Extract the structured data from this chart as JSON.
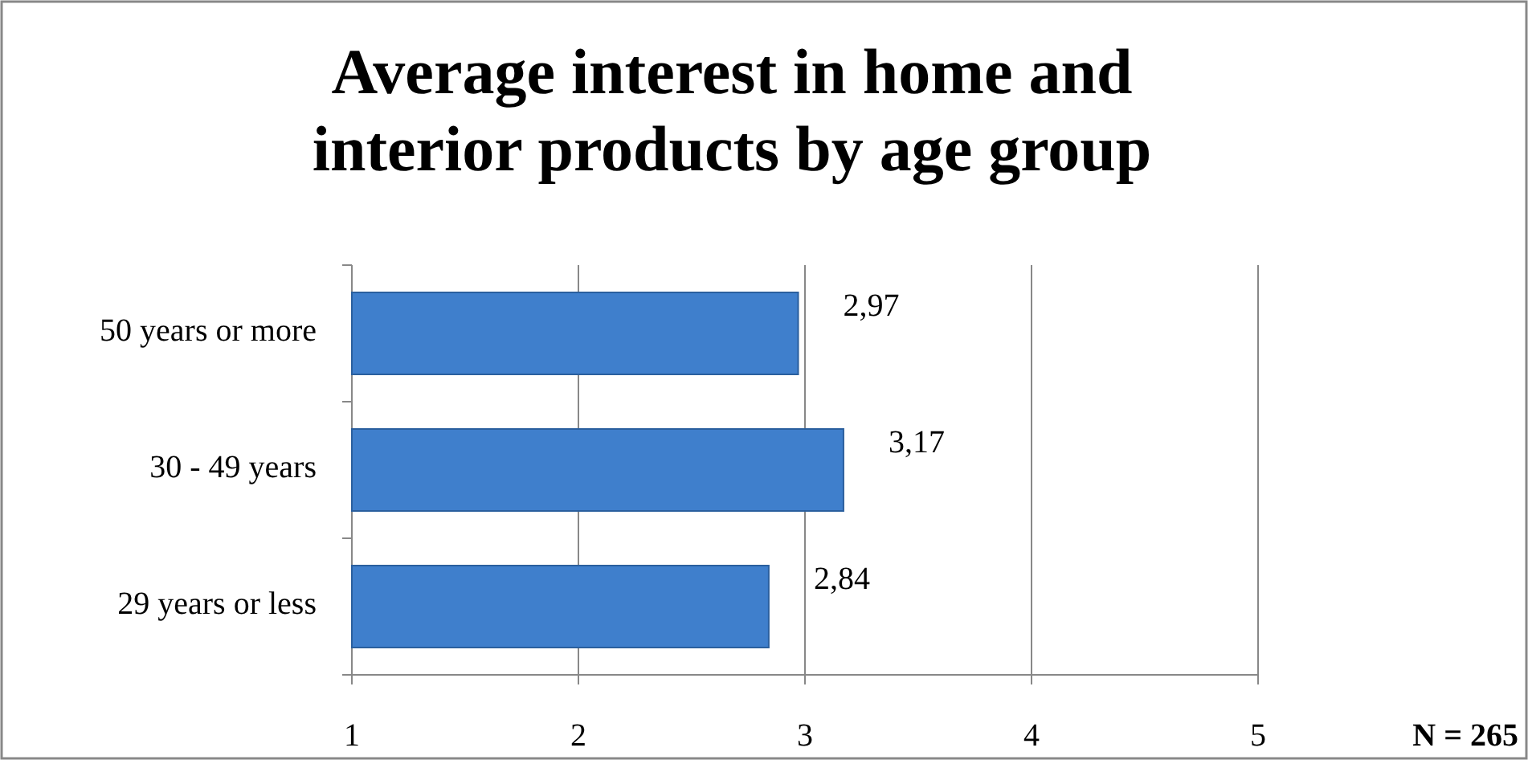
{
  "chart_data": {
    "type": "bar",
    "orientation": "horizontal",
    "title": "Average interest in home and interior products by age group",
    "categories": [
      "50 years or more",
      "30 - 49 years",
      "29 years or less"
    ],
    "values": [
      2.97,
      3.17,
      2.84
    ],
    "value_labels": [
      "2,97",
      "3,17",
      "2,84"
    ],
    "color": "#3f7fcc",
    "xlim": [
      1,
      5
    ],
    "xticks": [
      1,
      2,
      3,
      4,
      5
    ],
    "grid": "x",
    "annotations": [
      "N = 265"
    ]
  }
}
